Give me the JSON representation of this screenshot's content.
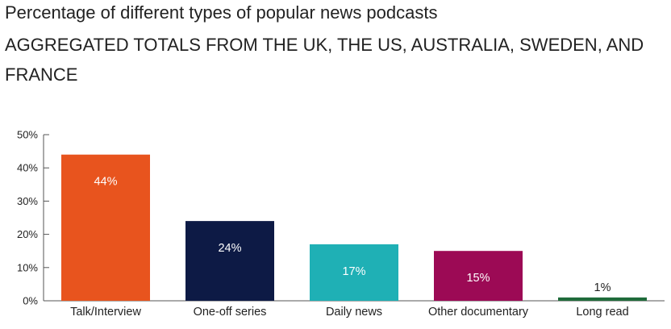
{
  "chart_data": {
    "type": "bar",
    "title": "Percentage of different types of popular news podcasts",
    "subtitle": "AGGREGATED TOTALS FROM THE UK, THE US, AUSTRALIA, SWEDEN, AND FRANCE",
    "categories": [
      "Talk/Interview",
      "One-off series",
      "Daily news",
      "Other documentary",
      "Long read"
    ],
    "values": [
      44,
      24,
      17,
      15,
      1
    ],
    "data_labels": [
      "44%",
      "24%",
      "17%",
      "15%",
      "1%"
    ],
    "colors": [
      "#e8541e",
      "#0d1a45",
      "#1fb0b5",
      "#9c0a55",
      "#1f6b3a"
    ],
    "label_colors": [
      "#ffffff",
      "#ffffff",
      "#ffffff",
      "#ffffff",
      "#222222"
    ],
    "yticks": [
      0,
      10,
      20,
      30,
      40,
      50
    ],
    "ytick_labels": [
      "0%",
      "10%",
      "20%",
      "30%",
      "40%",
      "50%"
    ],
    "ylim": [
      0,
      50
    ],
    "xlabel": "",
    "ylabel": "",
    "grid": false
  }
}
